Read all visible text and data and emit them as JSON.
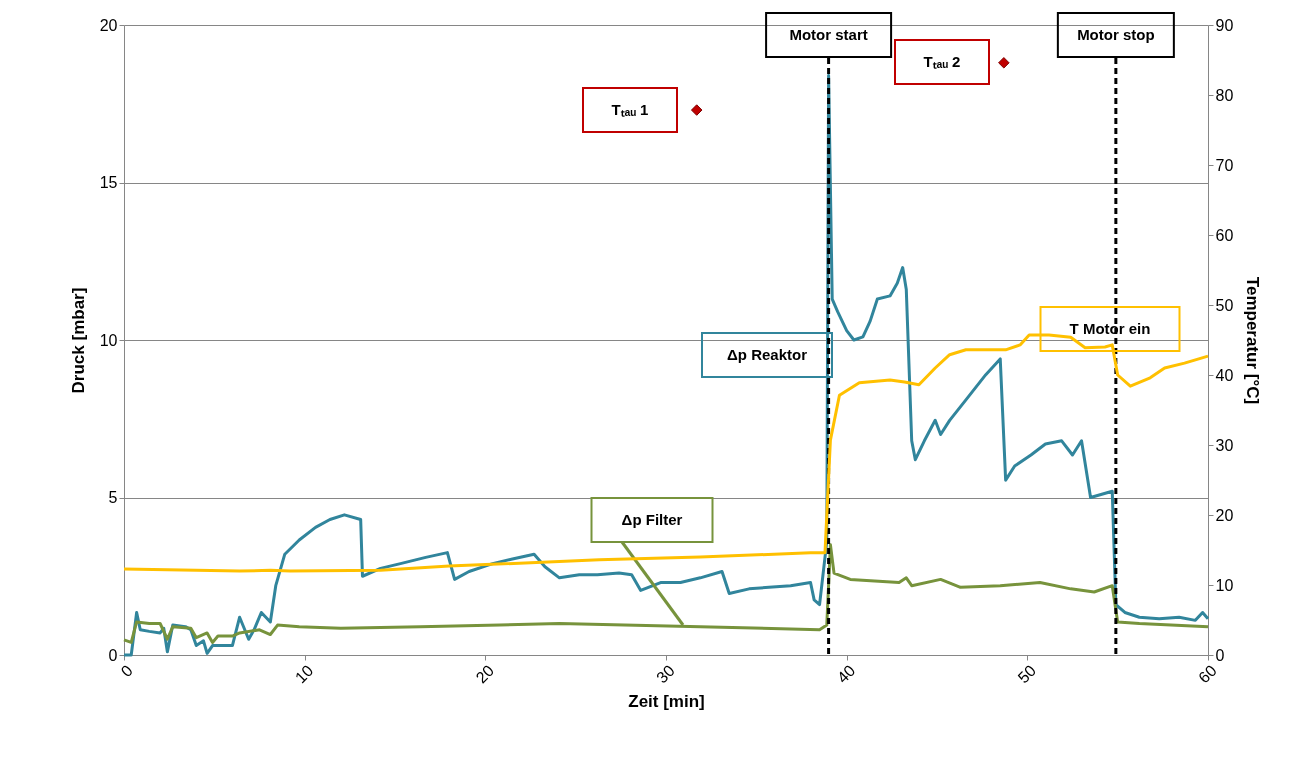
{
  "chart_data": {
    "type": "line",
    "xlabel": "Zeit [min]",
    "ylabel": "Druck  [mbar]",
    "y2label": "Temperatur [°C]",
    "xlim": [
      0,
      60
    ],
    "xticks": [
      0,
      10,
      20,
      30,
      40,
      50,
      60
    ],
    "ylim": [
      0,
      20
    ],
    "yticks": [
      0,
      5,
      10,
      15,
      20
    ],
    "y2lim": [
      0,
      90
    ],
    "y2ticks": [
      0,
      10,
      20,
      30,
      40,
      50,
      60,
      70,
      80,
      90
    ],
    "grid": "y",
    "marker": "none",
    "line_style": "solid",
    "series": [
      {
        "name": "Δp Reaktor",
        "color": "#31859c",
        "x": [
          0,
          0.4,
          0.7,
          0.9,
          1.4,
          2.0,
          2.2,
          2.4,
          2.7,
          3.4,
          3.7,
          4.0,
          4.4,
          4.6,
          4.9,
          6.0,
          6.4,
          6.9,
          7.2,
          7.6,
          8.1,
          8.4,
          8.9,
          9.7,
          10.6,
          11.4,
          12.2,
          13.1,
          13.2,
          14.2,
          15.3,
          16.7,
          17.9,
          18.3,
          19.1,
          20.4,
          21.5,
          22.7,
          23.3,
          24.1,
          25.2,
          26.2,
          27.4,
          28.1,
          28.6,
          29.7,
          30.8,
          31.9,
          33.1,
          33.5,
          34.6,
          35.7,
          36.9,
          38.0,
          38.2,
          38.5,
          38.9,
          39.0,
          39.2,
          39.5,
          40.0,
          40.4,
          40.9,
          41.3,
          41.7,
          42.4,
          42.8,
          43.1,
          43.3,
          43.6,
          43.8,
          44.3,
          44.9,
          45.2,
          45.7,
          46.6,
          47.7,
          48.5,
          48.8,
          49.3,
          50.2,
          51.0,
          51.9,
          52.5,
          53.0,
          53.5,
          54.7,
          54.9,
          55.4,
          56.2,
          57.3,
          58.4,
          59.3,
          59.7,
          60
        ],
        "values": [
          0,
          0,
          1.35,
          0.8,
          0.75,
          0.7,
          0.85,
          0.1,
          0.95,
          0.9,
          0.8,
          0.3,
          0.45,
          0.05,
          0.3,
          0.3,
          1.2,
          0.5,
          0.8,
          1.35,
          1.05,
          2.2,
          3.2,
          3.65,
          4.05,
          4.3,
          4.45,
          4.3,
          2.5,
          2.75,
          2.9,
          3.1,
          3.25,
          2.4,
          2.65,
          2.9,
          3.05,
          3.2,
          2.8,
          2.45,
          2.55,
          2.55,
          2.6,
          2.55,
          2.05,
          2.3,
          2.3,
          2.45,
          2.65,
          1.95,
          2.1,
          2.15,
          2.2,
          2.3,
          1.75,
          1.6,
          3.6,
          18.4,
          11.3,
          10.9,
          10.3,
          10.0,
          10.1,
          10.6,
          11.3,
          11.4,
          11.8,
          12.3,
          11.6,
          6.8,
          6.2,
          6.8,
          7.45,
          7.0,
          7.45,
          8.1,
          8.9,
          9.4,
          5.55,
          6.0,
          6.35,
          6.7,
          6.8,
          6.35,
          6.8,
          5.0,
          5.2,
          1.6,
          1.35,
          1.2,
          1.15,
          1.2,
          1.1,
          1.35,
          1.15
        ]
      },
      {
        "name": "Δp Filter",
        "color": "#77933c",
        "x": [
          0,
          0.4,
          0.7,
          1.4,
          2.0,
          2.4,
          2.7,
          3.7,
          4.0,
          4.6,
          4.9,
          5.2,
          6.0,
          6.4,
          7.5,
          8.1,
          8.5,
          9.7,
          12.0,
          16.4,
          20.8,
          24.1,
          31.9,
          38.5,
          38.9,
          39.1,
          39.3,
          40.2,
          42.9,
          43.3,
          43.6,
          45.2,
          46.3,
          48.5,
          50.7,
          52.4,
          53.7,
          54.7,
          55.0,
          56.2,
          60
        ],
        "values": [
          0.48,
          0.4,
          1.05,
          1.0,
          1.0,
          0.5,
          0.9,
          0.85,
          0.55,
          0.7,
          0.4,
          0.6,
          0.6,
          0.7,
          0.8,
          0.65,
          0.95,
          0.9,
          0.85,
          0.9,
          0.95,
          1.0,
          0.9,
          0.8,
          0.95,
          3.5,
          2.6,
          2.4,
          2.3,
          2.45,
          2.2,
          2.4,
          2.15,
          2.2,
          2.3,
          2.1,
          2.0,
          2.2,
          1.05,
          1.0,
          0.9
        ]
      },
      {
        "name": "T Motor ein",
        "color": "#ffc000",
        "axis": "y2",
        "x": [
          0,
          6.4,
          8.1,
          9.2,
          14.2,
          18.0,
          26.3,
          31.9,
          38.0,
          38.8,
          39.1,
          39.6,
          40.7,
          42.4,
          43.2,
          44.0,
          44.9,
          45.7,
          46.6,
          47.7,
          48.8,
          49.6,
          50.1,
          51.2,
          52.4,
          53.2,
          54.3,
          54.7,
          55.0,
          55.7,
          56.8,
          57.6,
          58.7,
          60
        ],
        "values": [
          12.3,
          12.0,
          12.1,
          12.0,
          12.1,
          12.7,
          13.6,
          14.0,
          14.6,
          14.6,
          30.7,
          37.1,
          38.9,
          39.3,
          39.0,
          38.6,
          41.0,
          42.9,
          43.6,
          43.6,
          43.6,
          44.3,
          45.7,
          45.7,
          45.4,
          43.9,
          44.0,
          44.3,
          40.0,
          38.4,
          39.6,
          41.0,
          41.7,
          42.7
        ]
      },
      {
        "name": "Tₜₐᵤ 1",
        "type": "scatter",
        "marker": "diamond",
        "color": "#c00000",
        "x": [
          31.7
        ],
        "values": [
          17.3
        ]
      },
      {
        "name": "Tₜₐᵤ 2",
        "type": "scatter",
        "marker": "diamond",
        "color": "#c00000",
        "x": [
          48.7
        ],
        "values": [
          18.8
        ]
      }
    ],
    "ref_lines": [
      {
        "axis": "x",
        "value": 39.0,
        "label": "Motor start",
        "color": "#000000",
        "line_style": "dashed"
      },
      {
        "axis": "x",
        "value": 54.9,
        "label": "Motor stop",
        "color": "#000000",
        "line_style": "dashed"
      }
    ]
  }
}
